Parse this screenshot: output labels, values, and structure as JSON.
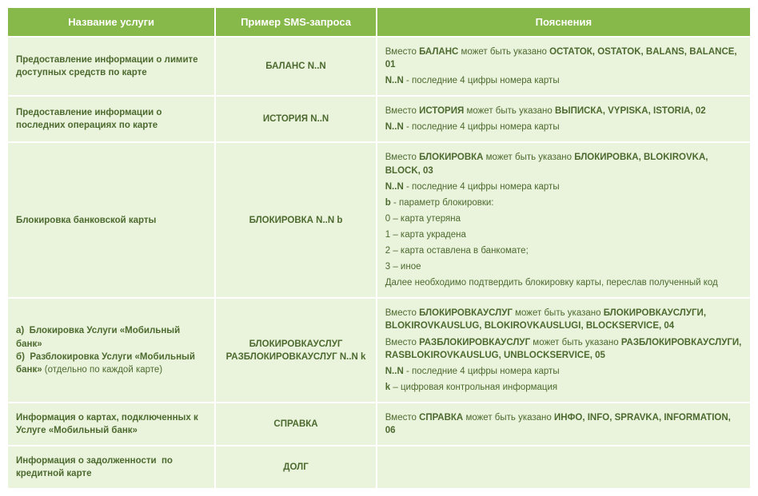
{
  "headers": {
    "col1": "Название услуги",
    "col2": "Пример SMS-запроса",
    "col3": "Пояснения"
  },
  "rows": [
    {
      "name": "Предоставление информации о лимите доступных средств по карте",
      "sms": "БАЛАНС N..N",
      "expl": [
        {
          "html": "Вместо <b>БАЛАНС</b> может быть указано <b>ОСТАТОК, OSTATOK, BALANS, BALANCE, 01</b>"
        },
        {
          "html": "<b>N..N</b> - последние 4 цифры номера карты"
        }
      ]
    },
    {
      "name": "Предоставление информации о последних операциях по карте",
      "sms": "ИСТОРИЯ N..N",
      "expl": [
        {
          "html": "Вместо <b>ИСТОРИЯ</b> может быть указано <b>ВЫПИСКА, VYPISKA, ISTORIA, 02</b>"
        },
        {
          "html": "<b>N..N</b> - последние 4 цифры номера карты"
        }
      ]
    },
    {
      "name": "Блокировка банковской карты",
      "sms": "БЛОКИРОВКА N..N b",
      "expl": [
        {
          "html": "Вместо <b>БЛОКИРОВКА</b> может быть указано <b>БЛОКИРОВКА, BLOKIROVKA, BLOCK, 03</b>"
        },
        {
          "html": "<b>N..N</b> - последние 4 цифры номера карты"
        },
        {
          "html": "<b>b</b> - параметр блокировки:"
        },
        {
          "html": "0 – карта утеряна",
          "indent": true
        },
        {
          "html": "1 – карта украдена",
          "indent": true
        },
        {
          "html": "2 – карта оставлена в банкомате;",
          "indent": true
        },
        {
          "html": "3 – иное",
          "indent": true
        },
        {
          "html": "Далее необходимо подтвердить блокировку карты, переслав полученный код"
        }
      ]
    },
    {
      "name": "а)&nbsp;&nbsp;Блокировка Услуги «Мобильный банк»<br>б)&nbsp;&nbsp;Разблокировка Услуги «Мобильный банк» <span style='font-weight:normal'>(отдельно по каждой карте)</span>",
      "sms": "БЛОКИРОВКАУСЛУГ<br>РАЗБЛОКИРОВКАУСЛУГ N..N k",
      "expl": [
        {
          "html": "Вместо <b>БЛОКИРОВКАУСЛУГ</b> может быть указано <b>БЛОКИРОВКАУСЛУГИ, BLOKIROVKAUSLUG, BLOKIROVKAUSLUGI, BLOCKSERVICE, 04</b>"
        },
        {
          "html": "Вместо <b>РАЗБЛОКИРОВКАУСЛУГ</b> может быть указано <b>РАЗБЛОКИРОВКАУСЛУГИ, RASBLOKIROVKAUSLUG, UNBLOCKSERVICE, 05</b>"
        },
        {
          "html": "<b>N..N</b> - последние 4 цифры номера карты"
        },
        {
          "html": "<b>k</b> – цифровая контрольная информация"
        }
      ]
    },
    {
      "name": "Информация о картах, подключенных к Услуге «Мобильный банк»",
      "sms": "СПРАВКА",
      "expl": [
        {
          "html": "Вместо <b>СПРАВКА</b> может быть указано <b>ИНФО, INFO, SPRAVKA, INFORMATION, 06</b>"
        }
      ]
    },
    {
      "name": "Информация о задолженности &nbsp;по кредитной карте",
      "sms": "ДОЛГ",
      "expl": []
    }
  ],
  "colors": {
    "header_bg": "#86b84a",
    "header_text": "#ffffff",
    "cell_bg": "#eaf3db",
    "text": "#4c6a2f"
  }
}
